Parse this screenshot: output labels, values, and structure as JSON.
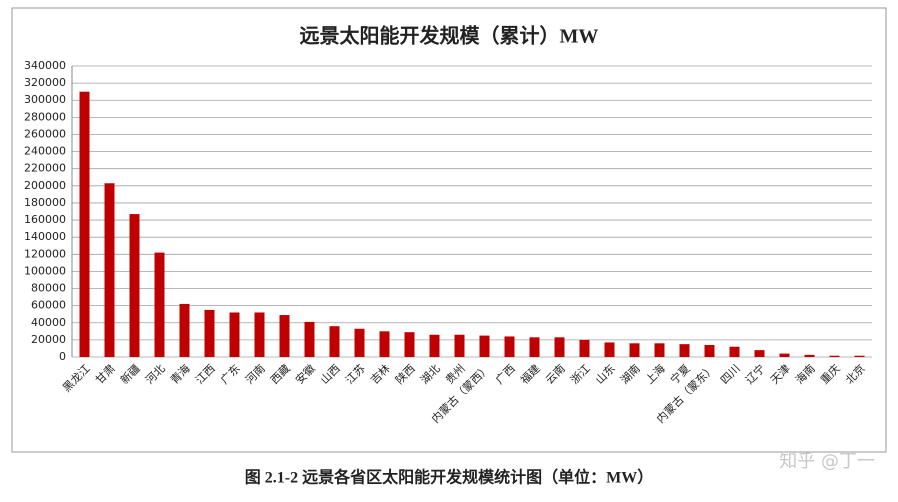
{
  "chart_data": {
    "type": "bar",
    "title": "远景太阳能开发规模（累计）MW",
    "categories": [
      "黑龙江",
      "甘肃",
      "新疆",
      "河北",
      "青海",
      "江西",
      "广东",
      "河南",
      "西藏",
      "安徽",
      "山西",
      "江苏",
      "吉林",
      "陕西",
      "湖北",
      "贵州",
      "内蒙古（蒙西）",
      "广西",
      "福建",
      "云南",
      "浙江",
      "山东",
      "湖南",
      "上海",
      "宁夏",
      "内蒙古（蒙东）",
      "四川",
      "辽宁",
      "天津",
      "海南",
      "重庆",
      "北京"
    ],
    "values": [
      310000,
      203000,
      167000,
      122000,
      62000,
      55000,
      52000,
      52000,
      49000,
      41000,
      36000,
      33000,
      30000,
      29000,
      26000,
      26000,
      25000,
      24000,
      23000,
      23000,
      20000,
      17000,
      16000,
      16000,
      15000,
      14000,
      12000,
      8000,
      4000,
      2500,
      1500,
      1500
    ],
    "color": "#c00000",
    "ylim": [
      0,
      340000
    ],
    "yticks": [
      0,
      20000,
      40000,
      60000,
      80000,
      100000,
      120000,
      140000,
      160000,
      180000,
      200000,
      220000,
      240000,
      260000,
      280000,
      300000,
      320000,
      340000
    ],
    "grid": true
  },
  "caption": "图 2.1-2 远景各省区太阳能开发规模统计图（单位：MW）",
  "watermark": "知乎 @丁一"
}
